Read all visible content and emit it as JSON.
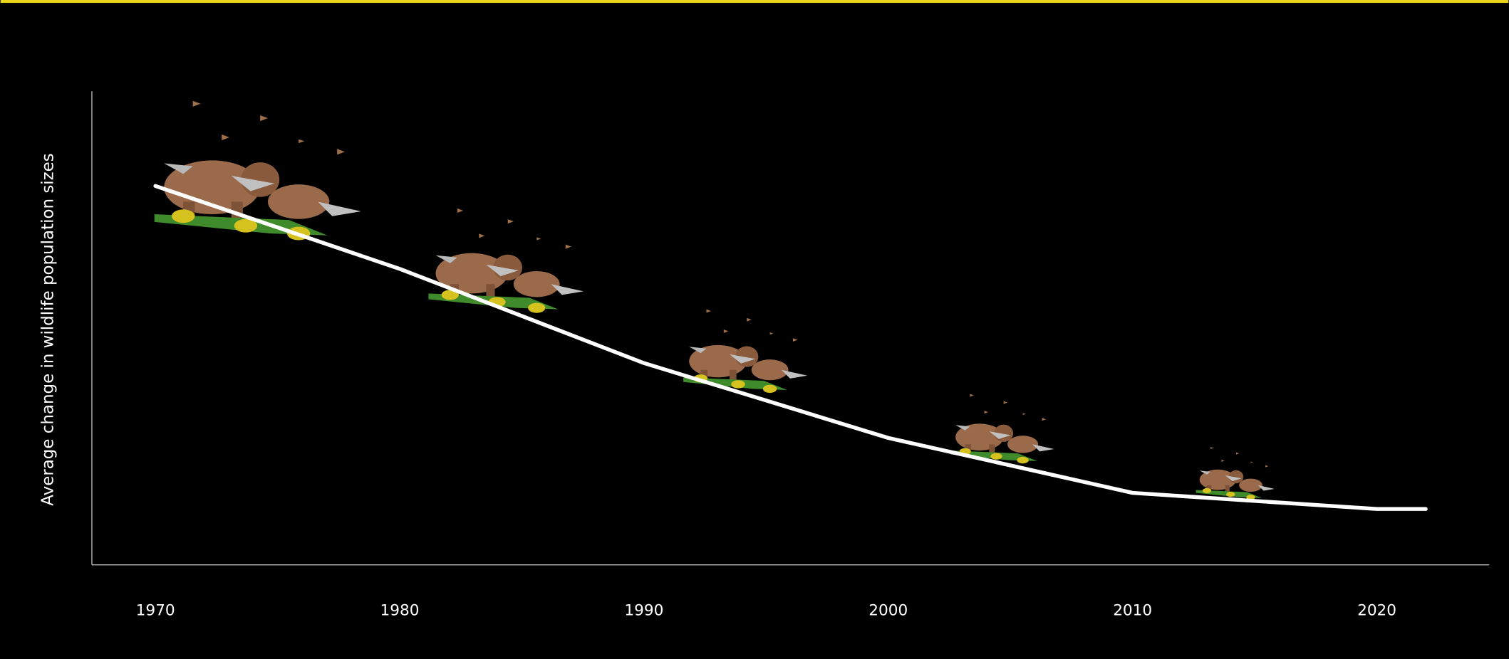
{
  "chart_data": {
    "type": "line",
    "y_label": "Average change in wildlife population sizes",
    "x": [
      1970,
      1980,
      1990,
      2000,
      2010,
      2020,
      2022
    ],
    "series": [
      {
        "color": "#ffffff",
        "values": [
          80,
          62.5,
          42.6,
          26.8,
          15.2,
          11.8,
          11.8
        ]
      }
    ],
    "xlim": [
      1967.4,
      2024.6
    ],
    "ylim": [
      0,
      100
    ],
    "xticks": [
      1970,
      1980,
      1990,
      2000,
      2010,
      2020
    ]
  }
}
